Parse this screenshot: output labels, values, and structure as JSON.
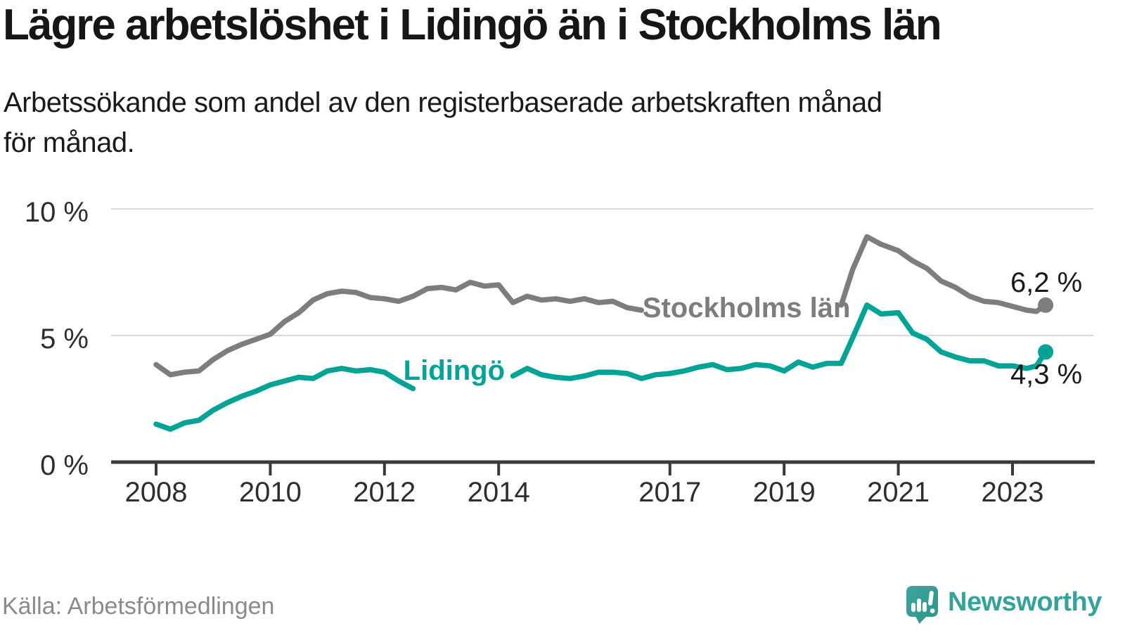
{
  "page": {
    "title": "Lägre arbetslöshet i Lidingö än i Stockholms län",
    "subtitle_lines": [
      "Arbetssökande som andel av den registerbaserade arbetskraften månad",
      "för månad."
    ],
    "source": "Källa: Arbetsförmedlingen",
    "brand": "Newsworthy"
  },
  "colors": {
    "series_gray": "#7d7d80",
    "series_teal": "#00a396",
    "grid": "#d9d9d9",
    "axis": "#3a3a3a",
    "text_dark": "#1a1a1a",
    "tick_text": "#2e2e2e",
    "muted_text": "#8a8a8a",
    "brand_teal": "#35a399",
    "brand_teal_dark": "#2f9289"
  },
  "chart_data": {
    "type": "line",
    "title": "Lägre arbetslöshet i Lidingö än i Stockholms län",
    "subtitle": "Arbetssökande som andel av den registerbaserade arbetskraften månad för månad.",
    "source": "Källa: Arbetsförmedlingen",
    "unit": "%",
    "x_axis": {
      "ticks": [
        2008,
        2010,
        2012,
        2014,
        2017,
        2019,
        2021,
        2023
      ],
      "range": [
        2007.2,
        2024.4
      ]
    },
    "y_axis": {
      "ticks": [
        {
          "value": 0,
          "label": "0 %"
        },
        {
          "value": 5,
          "label": "5 %"
        },
        {
          "value": 10,
          "label": "10 %"
        }
      ],
      "range": [
        0,
        10.5
      ],
      "grid": true
    },
    "legend": "inline-labels",
    "series": [
      {
        "name": "Stockholms län",
        "color": "#7d7d80",
        "end_label": "6,2 %",
        "end_value": 6.2,
        "inline_label_at": {
          "year": 2018.34,
          "pct": 6.11
        },
        "points": [
          [
            2008.0,
            3.85
          ],
          [
            2008.25,
            3.45
          ],
          [
            2008.5,
            3.55
          ],
          [
            2008.75,
            3.6
          ],
          [
            2009.0,
            4.05
          ],
          [
            2009.25,
            4.4
          ],
          [
            2009.5,
            4.65
          ],
          [
            2009.75,
            4.85
          ],
          [
            2010.0,
            5.05
          ],
          [
            2010.25,
            5.55
          ],
          [
            2010.5,
            5.9
          ],
          [
            2010.75,
            6.4
          ],
          [
            2011.0,
            6.65
          ],
          [
            2011.25,
            6.75
          ],
          [
            2011.5,
            6.7
          ],
          [
            2011.75,
            6.5
          ],
          [
            2012.0,
            6.45
          ],
          [
            2012.25,
            6.35
          ],
          [
            2012.5,
            6.55
          ],
          [
            2012.75,
            6.85
          ],
          [
            2013.0,
            6.9
          ],
          [
            2013.25,
            6.8
          ],
          [
            2013.5,
            7.1
          ],
          [
            2013.75,
            6.95
          ],
          [
            2014.0,
            7.0
          ],
          [
            2014.25,
            6.3
          ],
          [
            2014.5,
            6.55
          ],
          [
            2014.75,
            6.4
          ],
          [
            2015.0,
            6.45
          ],
          [
            2015.25,
            6.35
          ],
          [
            2015.5,
            6.45
          ],
          [
            2015.75,
            6.3
          ],
          [
            2016.0,
            6.35
          ],
          [
            2016.25,
            6.1
          ],
          [
            2016.5,
            6.0
          ],
          [
            2018.0,
            null
          ],
          [
            2020.0,
            6.2
          ],
          [
            2020.2,
            7.6
          ],
          [
            2020.45,
            8.9
          ],
          [
            2020.7,
            8.6
          ],
          [
            2021.0,
            8.35
          ],
          [
            2021.25,
            7.95
          ],
          [
            2021.5,
            7.65
          ],
          [
            2021.75,
            7.15
          ],
          [
            2022.0,
            6.9
          ],
          [
            2022.25,
            6.55
          ],
          [
            2022.5,
            6.35
          ],
          [
            2022.75,
            6.3
          ],
          [
            2023.0,
            6.15
          ],
          [
            2023.25,
            6.0
          ],
          [
            2023.42,
            5.95
          ],
          [
            2023.58,
            6.2
          ]
        ]
      },
      {
        "name": "Lidingö",
        "color": "#00a396",
        "end_label": "4,3 %",
        "end_value": 4.3,
        "inline_label_at": {
          "year": 2013.22,
          "pct": 3.64
        },
        "points": [
          [
            2008.0,
            1.5
          ],
          [
            2008.25,
            1.3
          ],
          [
            2008.5,
            1.55
          ],
          [
            2008.75,
            1.65
          ],
          [
            2009.0,
            2.05
          ],
          [
            2009.25,
            2.35
          ],
          [
            2009.5,
            2.6
          ],
          [
            2009.75,
            2.8
          ],
          [
            2010.0,
            3.05
          ],
          [
            2010.25,
            3.2
          ],
          [
            2010.5,
            3.35
          ],
          [
            2010.75,
            3.3
          ],
          [
            2011.0,
            3.6
          ],
          [
            2011.25,
            3.7
          ],
          [
            2011.5,
            3.6
          ],
          [
            2011.75,
            3.65
          ],
          [
            2012.0,
            3.55
          ],
          [
            2012.25,
            3.2
          ],
          [
            2012.5,
            2.9
          ],
          [
            2013.5,
            null
          ],
          [
            2014.25,
            3.4
          ],
          [
            2014.5,
            3.7
          ],
          [
            2014.75,
            3.45
          ],
          [
            2015.0,
            3.35
          ],
          [
            2015.25,
            3.3
          ],
          [
            2015.5,
            3.4
          ],
          [
            2015.75,
            3.55
          ],
          [
            2016.0,
            3.55
          ],
          [
            2016.25,
            3.5
          ],
          [
            2016.5,
            3.3
          ],
          [
            2016.75,
            3.45
          ],
          [
            2017.0,
            3.5
          ],
          [
            2017.25,
            3.6
          ],
          [
            2017.5,
            3.75
          ],
          [
            2017.75,
            3.85
          ],
          [
            2018.0,
            3.65
          ],
          [
            2018.25,
            3.7
          ],
          [
            2018.5,
            3.85
          ],
          [
            2018.75,
            3.8
          ],
          [
            2019.0,
            3.6
          ],
          [
            2019.25,
            3.95
          ],
          [
            2019.5,
            3.75
          ],
          [
            2019.75,
            3.9
          ],
          [
            2020.0,
            3.9
          ],
          [
            2020.2,
            4.9
          ],
          [
            2020.45,
            6.2
          ],
          [
            2020.7,
            5.85
          ],
          [
            2021.0,
            5.9
          ],
          [
            2021.25,
            5.1
          ],
          [
            2021.5,
            4.85
          ],
          [
            2021.75,
            4.35
          ],
          [
            2022.0,
            4.15
          ],
          [
            2022.25,
            4.0
          ],
          [
            2022.5,
            4.0
          ],
          [
            2022.75,
            3.8
          ],
          [
            2023.0,
            3.8
          ],
          [
            2023.25,
            3.7
          ],
          [
            2023.42,
            3.8
          ],
          [
            2023.58,
            4.35
          ]
        ]
      }
    ]
  }
}
